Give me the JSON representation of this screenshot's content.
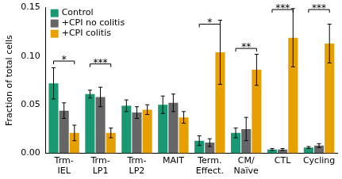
{
  "chart_data": {
    "type": "bar",
    "y_label": "Fraction of total cells",
    "categories": [
      [
        "Trm-",
        "IEL"
      ],
      [
        "Trm-",
        "LP1"
      ],
      [
        "Trm-",
        "LP2"
      ],
      "MAIT",
      [
        "Term.",
        "Effect."
      ],
      [
        "CM/",
        "Naïve"
      ],
      "CTL",
      "Cycling"
    ],
    "series": [
      {
        "name": "Control",
        "color": "#1a9873",
        "values": [
          0.072,
          0.061,
          0.049,
          0.05,
          0.013,
          0.021,
          0.004,
          0.006
        ],
        "errors": [
          0.016,
          0.004,
          0.006,
          0.009,
          0.005,
          0.005,
          0.001,
          0.001
        ]
      },
      {
        "name": "+CPI no colitis",
        "color": "#666666",
        "values": [
          0.044,
          0.058,
          0.042,
          0.052,
          0.011,
          0.025,
          0.004,
          0.008
        ],
        "errors": [
          0.008,
          0.01,
          0.006,
          0.009,
          0.004,
          0.012,
          0.001,
          0.002
        ]
      },
      {
        "name": "+CPI colitis",
        "color": "#e6a000",
        "values": [
          0.021,
          0.021,
          0.045,
          0.037,
          0.104,
          0.086,
          0.119,
          0.113
        ],
        "errors": [
          0.008,
          0.005,
          0.005,
          0.006,
          0.033,
          0.016,
          0.03,
          0.02
        ]
      }
    ],
    "annotations": [
      {
        "category_index": 0,
        "label": "*",
        "y": 0.095
      },
      {
        "category_index": 1,
        "label": "***",
        "y": 0.092
      },
      {
        "category_index": 4,
        "label": "*",
        "y": 0.133
      },
      {
        "category_index": 5,
        "label": "**",
        "y": 0.108
      },
      {
        "category_index": 6,
        "label": "***",
        "y": 0.148
      },
      {
        "category_index": 7,
        "label": "***",
        "y": 0.148
      }
    ],
    "ylim": [
      0,
      0.15
    ],
    "yticks": [
      {
        "value": 0,
        "label": "0.00"
      },
      {
        "value": 0.05,
        "label": "0.05"
      },
      {
        "value": 0.1,
        "label": "0.10"
      },
      {
        "value": 0.15,
        "label": "0.15"
      }
    ],
    "grid": false,
    "legend": "upper left"
  }
}
